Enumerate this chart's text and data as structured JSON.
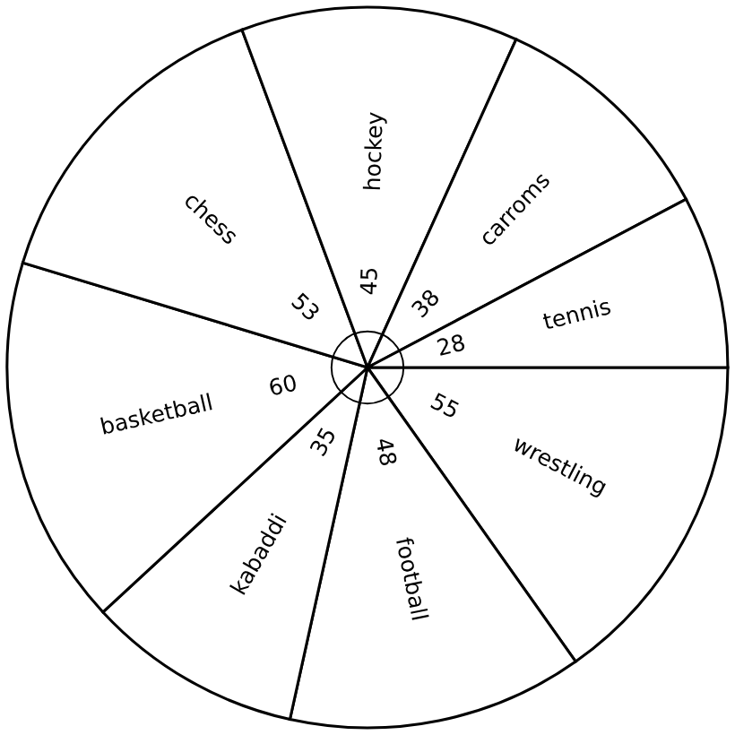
{
  "chart_data": {
    "type": "pie",
    "categories": [
      "wrestling",
      "football",
      "kabaddi",
      "basketball",
      "chess",
      "hockey",
      "carroms",
      "tennis"
    ],
    "values": [
      55,
      48,
      35,
      60,
      53,
      45,
      38,
      28
    ],
    "colors": [
      "#ffffff",
      "#ffffff",
      "#ffffff",
      "#ffffff",
      "#ffffff",
      "#ffffff",
      "#ffffff",
      "#ffffff"
    ],
    "data_labels": true
  }
}
